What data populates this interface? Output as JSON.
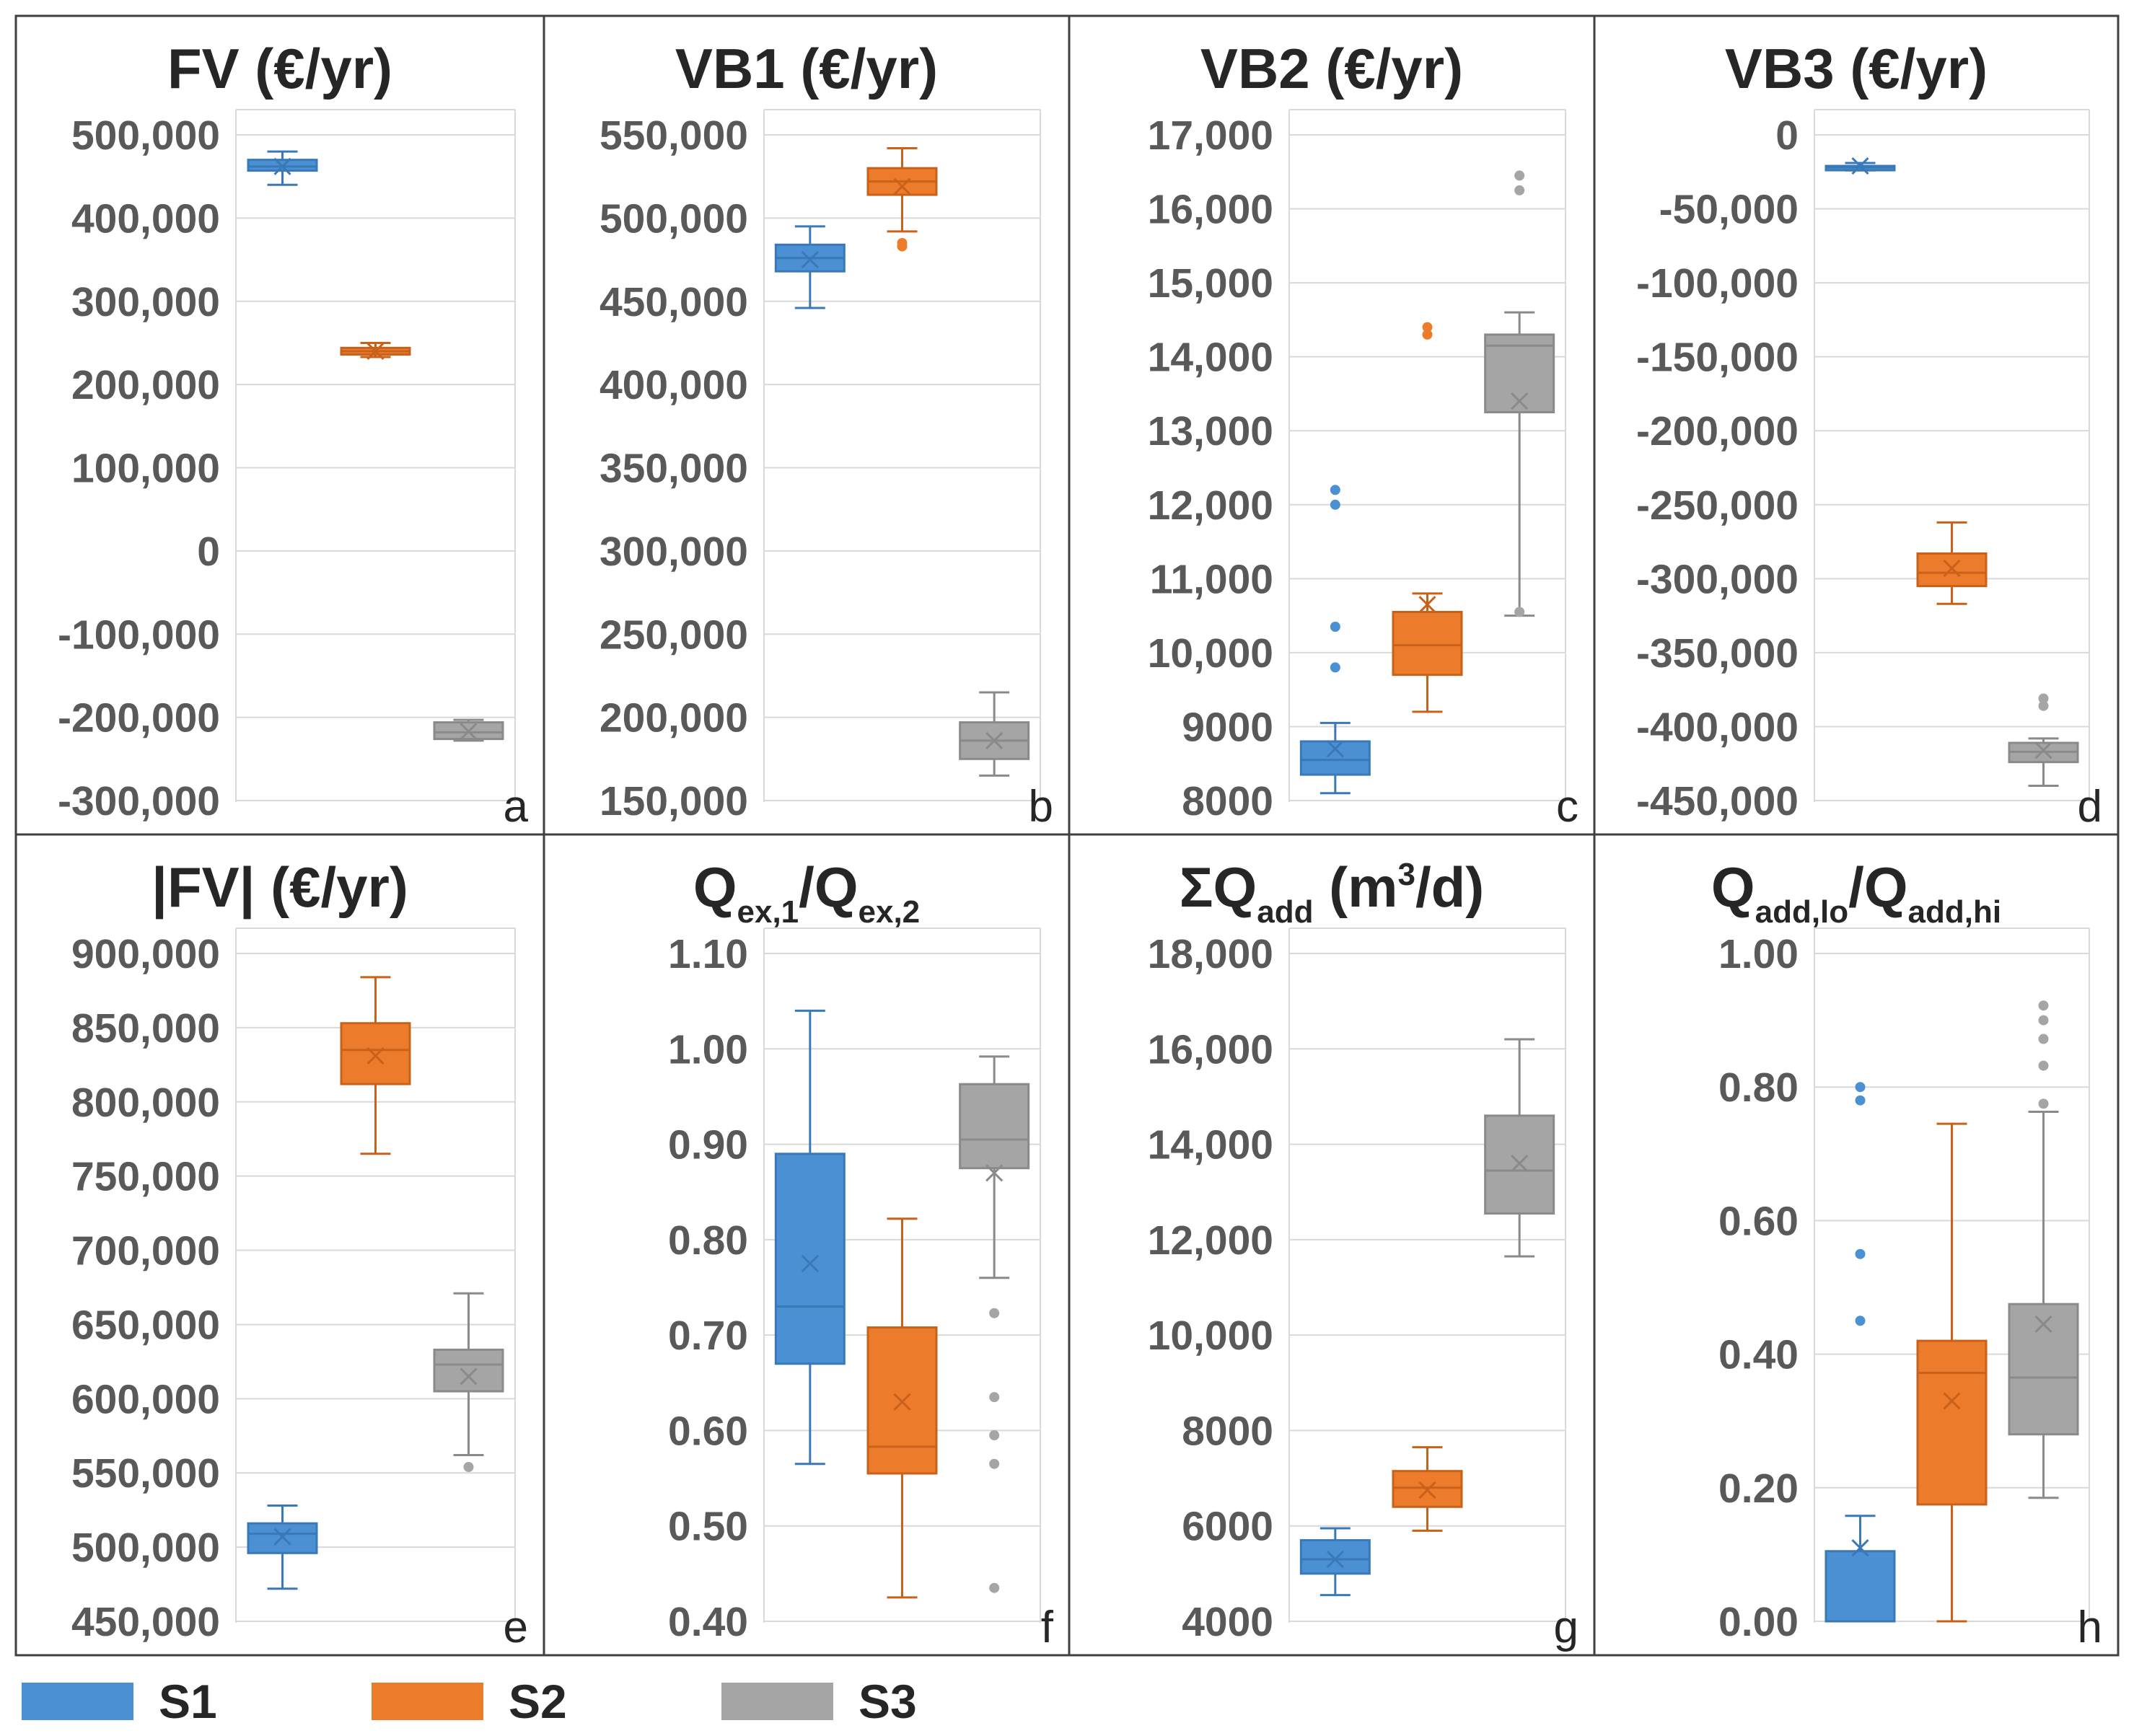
{
  "colors": {
    "S1": "#4a90d2",
    "S2": "#ec7b2c",
    "S3": "#a5a5a5",
    "S1_edge": "#3a79b8",
    "S2_edge": "#c9611a",
    "S3_edge": "#8a8a8a",
    "grid": "#d9d9d9",
    "frame": "#404040"
  },
  "legend": [
    {
      "key": "S1",
      "label": "S1"
    },
    {
      "key": "S2",
      "label": "S2"
    },
    {
      "key": "S3",
      "label": "S3"
    }
  ],
  "chart_data": [
    {
      "type": "box",
      "letter": "a",
      "title": {
        "parts": [
          {
            "t": "FV (€/yr)"
          }
        ]
      },
      "ylim": [
        -300000,
        500000
      ],
      "ticks": [
        -300000,
        -200000,
        -100000,
        0,
        100000,
        200000,
        300000,
        400000,
        500000
      ],
      "tick_labels": [
        "-300,000",
        "-200,000",
        "-100,000",
        "0",
        "100,000",
        "200,000",
        "300,000",
        "400,000",
        "500,000"
      ],
      "series": [
        {
          "name": "S1",
          "min": 440000,
          "q1": 457000,
          "median": 462000,
          "q3": 470000,
          "max": 480000,
          "mean": 462000,
          "outliers": []
        },
        {
          "name": "S2",
          "min": 233000,
          "q1": 236000,
          "median": 240000,
          "q3": 244000,
          "max": 250000,
          "mean": 240000,
          "outliers": []
        },
        {
          "name": "S3",
          "min": -228000,
          "q1": -226000,
          "median": -218000,
          "q3": -206000,
          "max": -203000,
          "mean": -217000,
          "outliers": []
        }
      ]
    },
    {
      "type": "box",
      "letter": "b",
      "title": {
        "parts": [
          {
            "t": "VB1 (€/yr)"
          }
        ]
      },
      "ylim": [
        150000,
        550000
      ],
      "ticks": [
        150000,
        200000,
        250000,
        300000,
        350000,
        400000,
        450000,
        500000,
        550000
      ],
      "tick_labels": [
        "150,000",
        "200,000",
        "250,000",
        "300,000",
        "350,000",
        "400,000",
        "450,000",
        "500,000",
        "550,000"
      ],
      "series": [
        {
          "name": "S1",
          "min": 446000,
          "q1": 468000,
          "median": 476000,
          "q3": 484000,
          "max": 495000,
          "mean": 475000,
          "outliers": []
        },
        {
          "name": "S2",
          "min": 492000,
          "q1": 514000,
          "median": 522000,
          "q3": 530000,
          "max": 542000,
          "mean": 519000,
          "outliers": [
            485000,
            483000
          ]
        },
        {
          "name": "S3",
          "min": 165000,
          "q1": 175000,
          "median": 186000,
          "q3": 197000,
          "max": 215000,
          "mean": 186000,
          "outliers": []
        }
      ]
    },
    {
      "type": "box",
      "letter": "c",
      "title": {
        "parts": [
          {
            "t": "VB2 (€/yr)"
          }
        ]
      },
      "ylim": [
        8000,
        17000
      ],
      "ticks": [
        8000,
        9000,
        10000,
        11000,
        12000,
        13000,
        14000,
        15000,
        16000,
        17000
      ],
      "tick_labels": [
        "8000",
        "9000",
        "10,000",
        "11,000",
        "12,000",
        "13,000",
        "14,000",
        "15,000",
        "16,000",
        "17,000"
      ],
      "series": [
        {
          "name": "S1",
          "min": 8100,
          "q1": 8350,
          "median": 8550,
          "q3": 8800,
          "max": 9050,
          "mean": 8700,
          "outliers": [
            9800,
            10350,
            12000,
            12200
          ]
        },
        {
          "name": "S2",
          "min": 9200,
          "q1": 9700,
          "median": 10100,
          "q3": 10550,
          "max": 10800,
          "mean": 10650,
          "outliers": [
            14300,
            14400
          ]
        },
        {
          "name": "S3",
          "min": 10500,
          "q1": 13250,
          "median": 14150,
          "q3": 14300,
          "max": 14600,
          "mean": 13400,
          "outliers": [
            10550,
            16250,
            16450
          ]
        }
      ]
    },
    {
      "type": "box",
      "letter": "d",
      "title": {
        "parts": [
          {
            "t": "VB3 (€/yr)"
          }
        ]
      },
      "ylim": [
        -450000,
        0
      ],
      "ticks": [
        -450000,
        -400000,
        -350000,
        -300000,
        -250000,
        -200000,
        -150000,
        -100000,
        -50000,
        0
      ],
      "tick_labels": [
        "-450,000",
        "-400,000",
        "-350,000",
        "-300,000",
        "-250,000",
        "-200,000",
        "-150,000",
        "-100,000",
        "-50,000",
        "0"
      ],
      "series": [
        {
          "name": "S1",
          "min": -24000,
          "q1": -23000,
          "median": -22000,
          "q3": -21000,
          "max": -19000,
          "mean": -21000,
          "outliers": []
        },
        {
          "name": "S2",
          "min": -317000,
          "q1": -305000,
          "median": -296000,
          "q3": -283000,
          "max": -262000,
          "mean": -293000,
          "outliers": []
        },
        {
          "name": "S3",
          "min": -440000,
          "q1": -424000,
          "median": -417000,
          "q3": -411000,
          "max": -408000,
          "mean": -416000,
          "outliers": [
            -386000,
            -381000
          ]
        }
      ]
    },
    {
      "type": "box",
      "letter": "e",
      "title": {
        "parts": [
          {
            "t": "|FV| (€/yr)"
          }
        ]
      },
      "ylim": [
        450000,
        900000
      ],
      "ticks": [
        450000,
        500000,
        550000,
        600000,
        650000,
        700000,
        750000,
        800000,
        850000,
        900000
      ],
      "tick_labels": [
        "450,000",
        "500,000",
        "550,000",
        "600,000",
        "650,000",
        "700,000",
        "750,000",
        "800,000",
        "850,000",
        "900,000"
      ],
      "series": [
        {
          "name": "S1",
          "min": 472000,
          "q1": 496000,
          "median": 509000,
          "q3": 516000,
          "max": 528000,
          "mean": 507000,
          "outliers": []
        },
        {
          "name": "S2",
          "min": 765000,
          "q1": 812000,
          "median": 835000,
          "q3": 853000,
          "max": 884000,
          "mean": 831000,
          "outliers": []
        },
        {
          "name": "S3",
          "min": 562000,
          "q1": 605000,
          "median": 623000,
          "q3": 633000,
          "max": 671000,
          "mean": 615000,
          "outliers": [
            554000
          ]
        }
      ]
    },
    {
      "type": "box",
      "letter": "f",
      "title": {
        "parts": [
          {
            "t": "Q"
          },
          {
            "t": "ex,1",
            "sub": true
          },
          {
            "t": "/Q"
          },
          {
            "t": "ex,2",
            "sub": true
          }
        ]
      },
      "ylim": [
        0.4,
        1.1
      ],
      "ticks": [
        0.4,
        0.5,
        0.6,
        0.7,
        0.8,
        0.9,
        1.0,
        1.1
      ],
      "tick_labels": [
        "0.40",
        "0.50",
        "0.60",
        "0.70",
        "0.80",
        "0.90",
        "1.00",
        "1.10"
      ],
      "series": [
        {
          "name": "S1",
          "min": 0.565,
          "q1": 0.67,
          "median": 0.73,
          "q3": 0.89,
          "max": 1.04,
          "mean": 0.775,
          "outliers": []
        },
        {
          "name": "S2",
          "min": 0.425,
          "q1": 0.555,
          "median": 0.583,
          "q3": 0.708,
          "max": 0.822,
          "mean": 0.63,
          "outliers": []
        },
        {
          "name": "S3",
          "min": 0.76,
          "q1": 0.875,
          "median": 0.905,
          "q3": 0.963,
          "max": 0.992,
          "mean": 0.87,
          "outliers": [
            0.435,
            0.565,
            0.595,
            0.635,
            0.723
          ]
        }
      ]
    },
    {
      "type": "box",
      "letter": "g",
      "title": {
        "parts": [
          {
            "t": "ΣQ"
          },
          {
            "t": "add",
            "sub": true
          },
          {
            "t": " (m"
          },
          {
            "t": "3",
            "sup": true
          },
          {
            "t": "/d)"
          }
        ]
      },
      "ylim": [
        4000,
        18000
      ],
      "ticks": [
        4000,
        6000,
        8000,
        10000,
        12000,
        14000,
        16000,
        18000
      ],
      "tick_labels": [
        "4000",
        "6000",
        "8000",
        "10,000",
        "12,000",
        "14,000",
        "16,000",
        "18,000"
      ],
      "series": [
        {
          "name": "S1",
          "min": 4550,
          "q1": 5000,
          "median": 5300,
          "q3": 5700,
          "max": 5950,
          "mean": 5300,
          "outliers": []
        },
        {
          "name": "S2",
          "min": 5900,
          "q1": 6400,
          "median": 6800,
          "q3": 7150,
          "max": 7650,
          "mean": 6750,
          "outliers": []
        },
        {
          "name": "S3",
          "min": 11650,
          "q1": 12550,
          "median": 13450,
          "q3": 14600,
          "max": 16200,
          "mean": 13600,
          "outliers": []
        }
      ]
    },
    {
      "type": "box",
      "letter": "h",
      "title": {
        "parts": [
          {
            "t": "Q"
          },
          {
            "t": "add,lo",
            "sub": true
          },
          {
            "t": "/Q"
          },
          {
            "t": "add,hi",
            "sub": true
          }
        ]
      },
      "ylim": [
        0.0,
        1.0
      ],
      "ticks": [
        0.0,
        0.2,
        0.4,
        0.6,
        0.8,
        1.0
      ],
      "tick_labels": [
        "0.00",
        "0.20",
        "0.40",
        "0.60",
        "0.80",
        "1.00"
      ],
      "series": [
        {
          "name": "S1",
          "min": 0.0,
          "q1": 0.0,
          "median": 0.0,
          "q3": 0.105,
          "max": 0.158,
          "mean": 0.11,
          "outliers": [
            0.45,
            0.55,
            0.78,
            0.8
          ]
        },
        {
          "name": "S2",
          "min": 0.0,
          "q1": 0.175,
          "median": 0.372,
          "q3": 0.42,
          "max": 0.745,
          "mean": 0.33,
          "outliers": []
        },
        {
          "name": "S3",
          "min": 0.185,
          "q1": 0.28,
          "median": 0.365,
          "q3": 0.475,
          "max": 0.763,
          "mean": 0.445,
          "outliers": [
            0.775,
            0.832,
            0.872,
            0.9,
            0.922
          ]
        }
      ]
    }
  ]
}
